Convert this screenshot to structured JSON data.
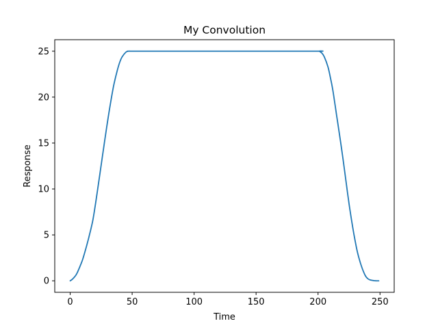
{
  "chart_data": {
    "type": "line",
    "title": "My Convolution",
    "xlabel": "Time",
    "ylabel": "Response",
    "xlim": [
      -12.45,
      261.45
    ],
    "ylim": [
      -1.25,
      26.25
    ],
    "xticks": [
      0,
      50,
      100,
      150,
      200,
      250
    ],
    "yticks": [
      0,
      5,
      10,
      15,
      20,
      25
    ],
    "grid": false,
    "legend": "none",
    "series": [
      {
        "color": "#1f77b4",
        "x": [
          0,
          2,
          5,
          8,
          10,
          12,
          15,
          18,
          20,
          22,
          25,
          28,
          30,
          32,
          35,
          38,
          40,
          42,
          45,
          47,
          49,
          50,
          100,
          150,
          200,
          201,
          203,
          205,
          208,
          210,
          212,
          215,
          218,
          220,
          222,
          225,
          228,
          230,
          232,
          235,
          238,
          240,
          242,
          245,
          247,
          249
        ],
        "y": [
          0,
          0.2,
          0.7,
          1.6,
          2.3,
          3.2,
          4.7,
          6.4,
          8.0,
          9.8,
          12.6,
          15.4,
          17.2,
          18.9,
          21.2,
          22.9,
          23.8,
          24.4,
          24.9,
          25,
          25,
          25,
          25,
          25,
          25,
          25,
          24.8,
          24.4,
          23.3,
          22.1,
          20.7,
          18.0,
          15.3,
          13.4,
          11.4,
          8.4,
          5.8,
          4.3,
          3.0,
          1.6,
          0.6,
          0.25,
          0.1,
          0.02,
          0,
          0
        ]
      }
    ]
  }
}
